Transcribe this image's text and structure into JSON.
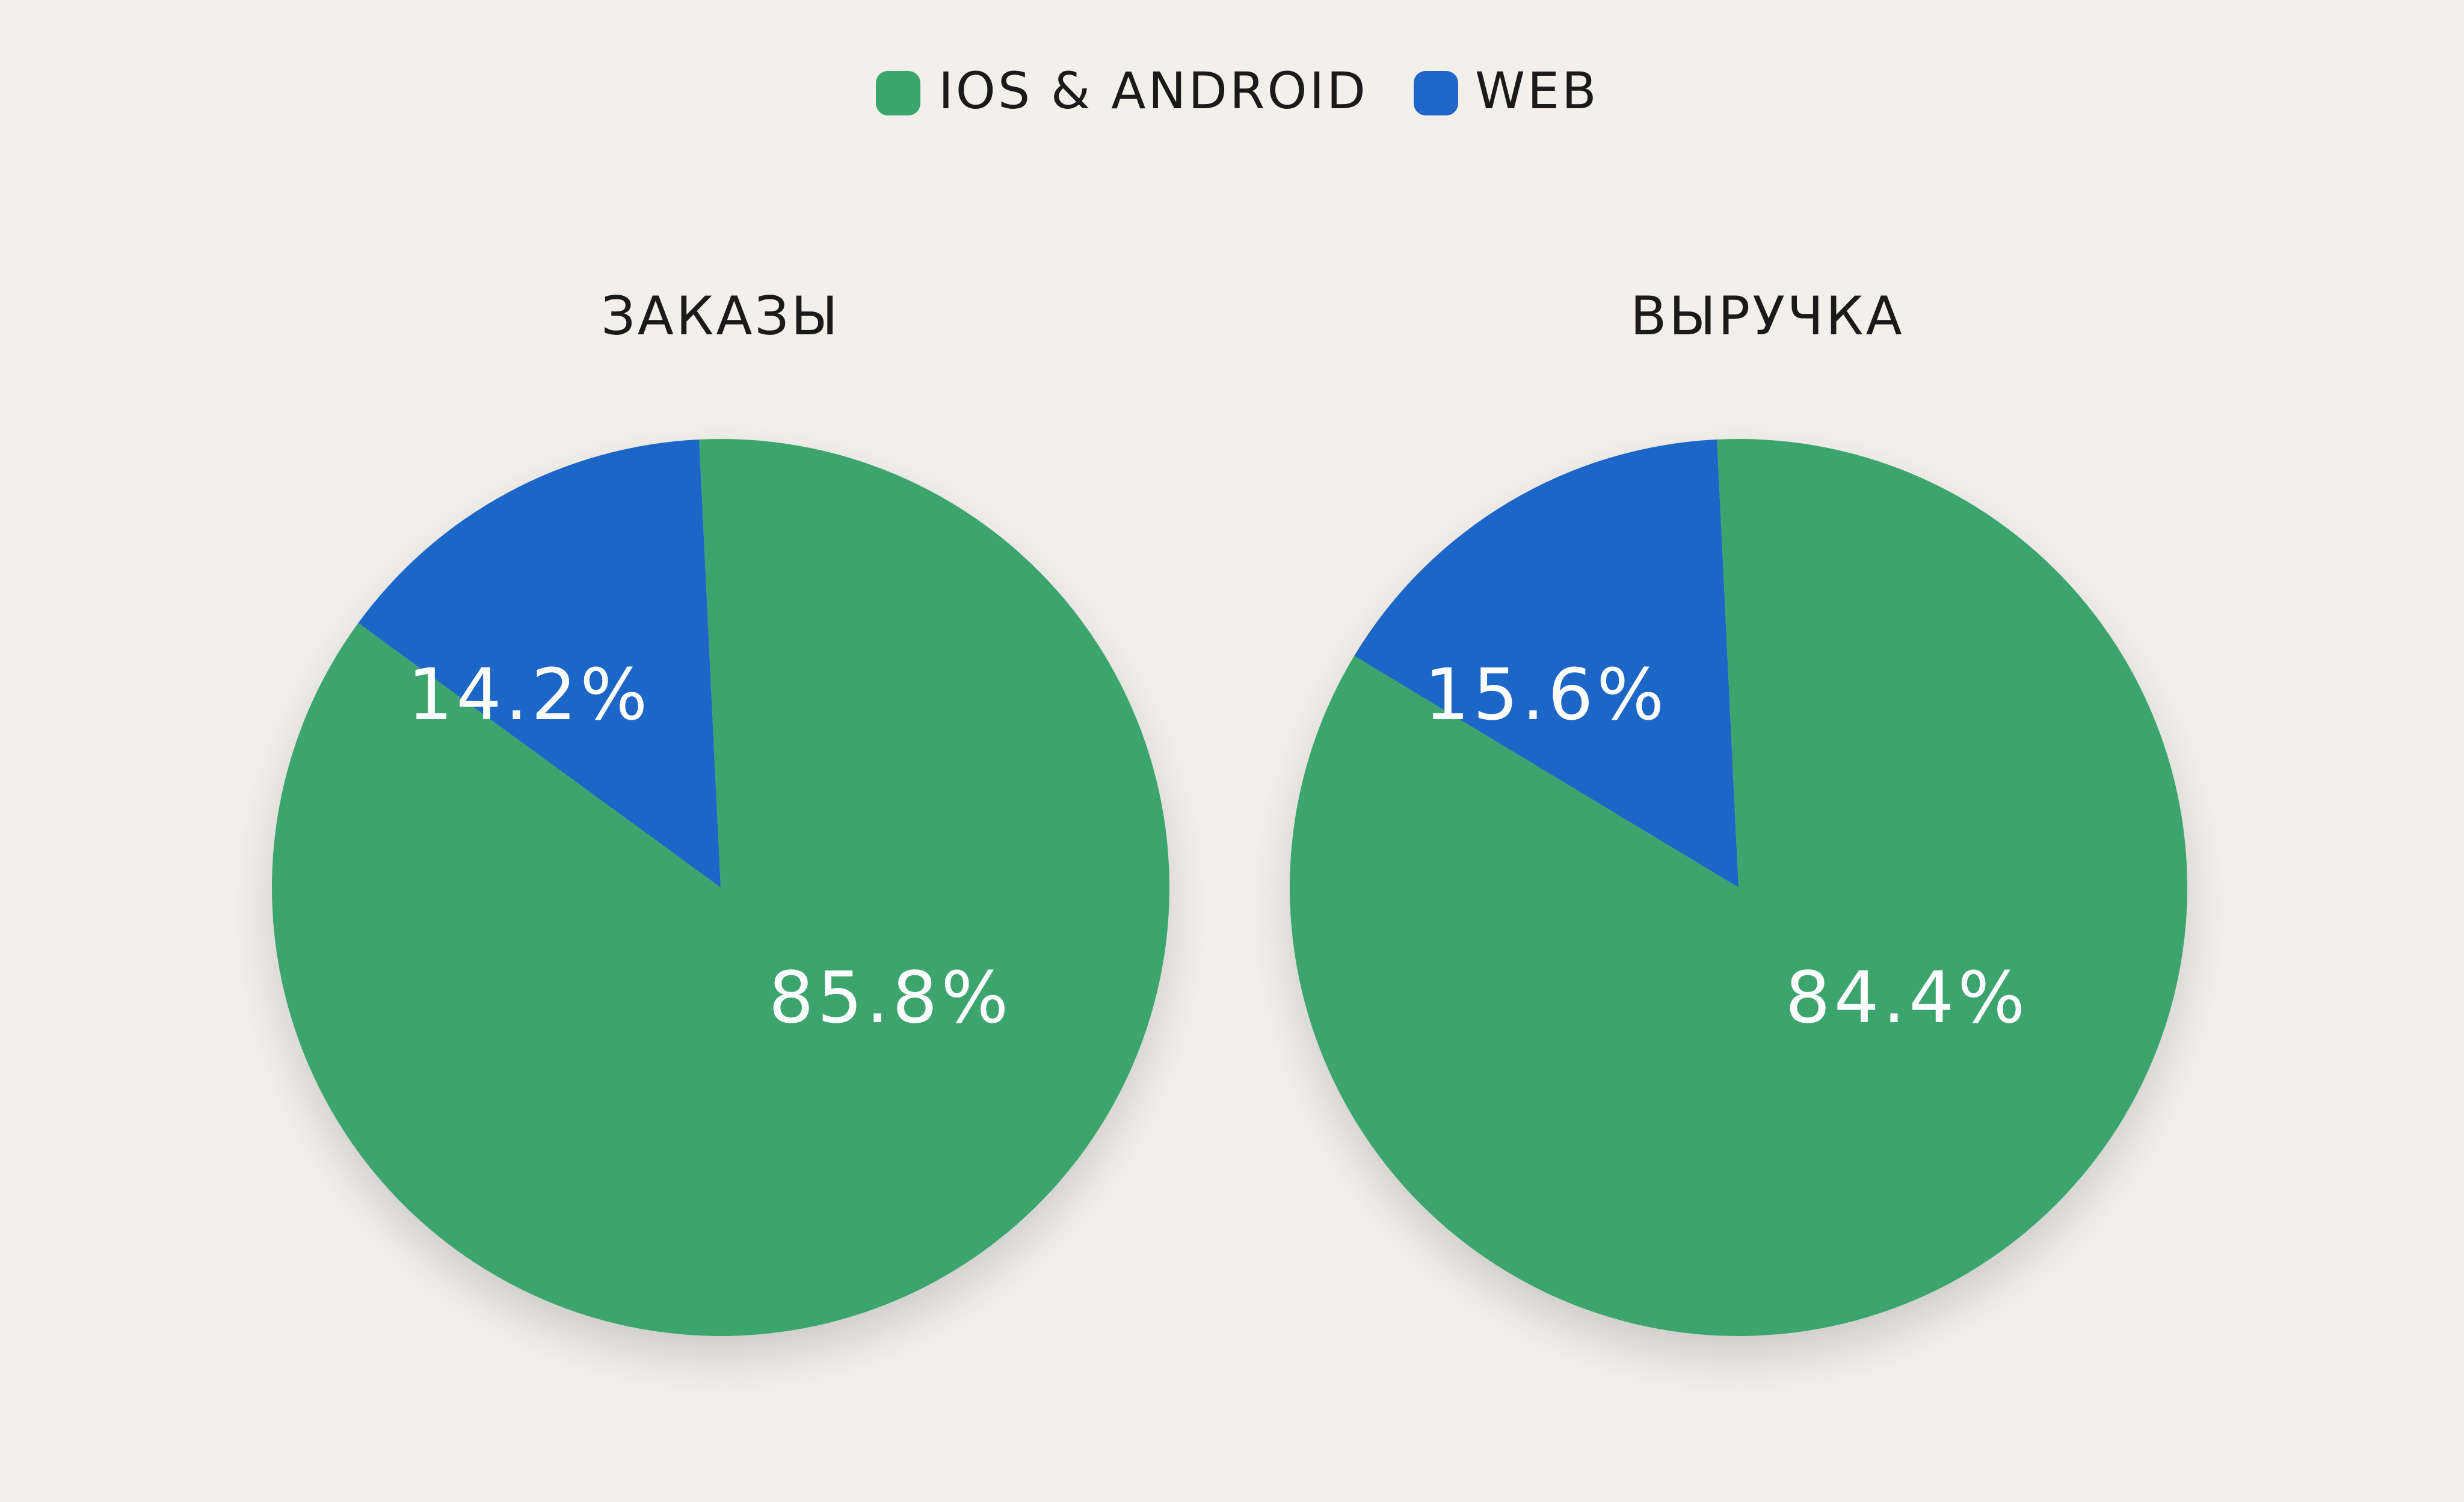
{
  "colors": {
    "background": "#f3f0ec",
    "ios_android": "#3aa56d",
    "web": "#1f66c8"
  },
  "legend": [
    {
      "label": "IOS & ANDROID",
      "color": "#3aa56d"
    },
    {
      "label": "WEB",
      "color": "#1f66c8"
    }
  ],
  "chart_data": [
    {
      "type": "pie",
      "title": "ЗАКАЗЫ",
      "legend_position": "top-center",
      "slices": [
        {
          "name": "IOS & ANDROID",
          "value": 85.8,
          "label": "85.8%",
          "color": "#3aa56d"
        },
        {
          "name": "WEB",
          "value": 14.2,
          "label": "14.2%",
          "color": "#1f66c8"
        }
      ]
    },
    {
      "type": "pie",
      "title": "ВЫРУЧКА",
      "legend_position": "top-center",
      "slices": [
        {
          "name": "IOS & ANDROID",
          "value": 84.4,
          "label": "84.4%",
          "color": "#3aa56d"
        },
        {
          "name": "WEB",
          "value": 15.6,
          "label": "15.6%",
          "color": "#1f66c8"
        }
      ]
    }
  ]
}
